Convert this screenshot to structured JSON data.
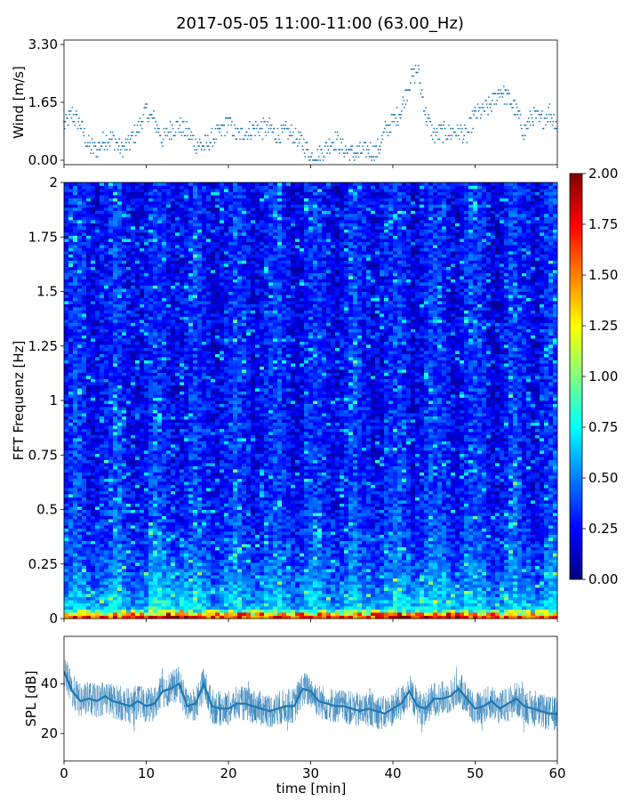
{
  "chart_data": [
    {
      "type": "scatter",
      "title": "2017-05-05 11:00-11:00 (63.00_Hz)",
      "xlabel": "",
      "ylabel": "Wind [m/s]",
      "xlim": [
        0,
        60
      ],
      "ylim": [
        0,
        3.3
      ],
      "yticks": [
        "0.00",
        "1.65",
        "3.30"
      ],
      "color": "#1f77b4",
      "series": [
        {
          "x": [
            0,
            1,
            2,
            3,
            4,
            5,
            6,
            7,
            8,
            9,
            10,
            11,
            12,
            13,
            14,
            15,
            16,
            17,
            18,
            19,
            20,
            21,
            22,
            23,
            24,
            25,
            26,
            27,
            28,
            29,
            30,
            31,
            32,
            33,
            34,
            35,
            36,
            37,
            38,
            39,
            40,
            41,
            42,
            43,
            44,
            45,
            46,
            47,
            48,
            49,
            50,
            51,
            52,
            53,
            54,
            55,
            56,
            57,
            58,
            59,
            60
          ],
          "y": [
            1.0,
            1.3,
            1.0,
            0.4,
            0.3,
            0.6,
            0.6,
            0.3,
            0.5,
            0.9,
            1.4,
            1.1,
            0.6,
            0.9,
            1.0,
            0.8,
            0.5,
            0.4,
            0.6,
            0.8,
            1.1,
            0.7,
            0.8,
            0.9,
            0.9,
            0.9,
            0.7,
            0.8,
            0.7,
            0.5,
            0.1,
            0.1,
            0.4,
            0.6,
            0.3,
            0.2,
            0.2,
            0.3,
            0.2,
            0.8,
            1.1,
            1.4,
            2.2,
            2.6,
            1.3,
            0.7,
            0.8,
            0.8,
            0.8,
            0.7,
            1.3,
            1.4,
            1.6,
            2.0,
            1.8,
            1.4,
            0.8,
            1.3,
            1.1,
            1.4,
            1.0
          ]
        }
      ]
    },
    {
      "type": "heatmap",
      "xlabel": "",
      "ylabel": "FFT Frequenz [Hz]",
      "xlim": [
        0,
        60
      ],
      "ylim": [
        0,
        2
      ],
      "yticks": [
        "0",
        "0.25",
        "0.5",
        "0.75",
        "1",
        "1.25",
        "1.5",
        "1.75",
        "2"
      ],
      "colorbar": {
        "range": [
          0,
          2
        ],
        "ticks": [
          "0.00",
          "0.25",
          "0.50",
          "0.75",
          "1.00",
          "1.25",
          "1.50",
          "1.75",
          "2.00"
        ],
        "colormap": "jet"
      },
      "description_values": {
        "baseline_level": 0.28,
        "low_freq_peak_level": 2.0
      }
    },
    {
      "type": "line",
      "xlabel": "time [min]",
      "ylabel": "SPL [dB]",
      "xlim": [
        0,
        60
      ],
      "ylim": [
        9,
        59
      ],
      "xticks": [
        "0",
        "10",
        "20",
        "30",
        "40",
        "50",
        "60"
      ],
      "yticks": [
        "20",
        "40"
      ],
      "color": "#1f77b4",
      "series": [
        {
          "x": [
            0,
            1,
            2,
            3,
            4,
            5,
            6,
            7,
            8,
            9,
            10,
            11,
            12,
            13,
            14,
            15,
            16,
            17,
            18,
            19,
            20,
            21,
            22,
            23,
            24,
            25,
            26,
            27,
            28,
            29,
            30,
            31,
            32,
            33,
            34,
            35,
            36,
            37,
            38,
            39,
            40,
            41,
            42,
            43,
            44,
            45,
            46,
            47,
            48,
            49,
            50,
            51,
            52,
            53,
            54,
            55,
            56,
            57,
            58,
            59,
            60
          ],
          "y": [
            45,
            37,
            33,
            34,
            33,
            35,
            33,
            32,
            31,
            33,
            31,
            32,
            37,
            38,
            40,
            31,
            32,
            40,
            31,
            30,
            30,
            32,
            32,
            31,
            30,
            29,
            30,
            31,
            31,
            38,
            37,
            33,
            32,
            31,
            31,
            30,
            29,
            30,
            29,
            28,
            30,
            32,
            37,
            31,
            30,
            34,
            34,
            35,
            38,
            34,
            30,
            31,
            33,
            30,
            32,
            34,
            31,
            30,
            29,
            28,
            28
          ]
        }
      ]
    }
  ]
}
